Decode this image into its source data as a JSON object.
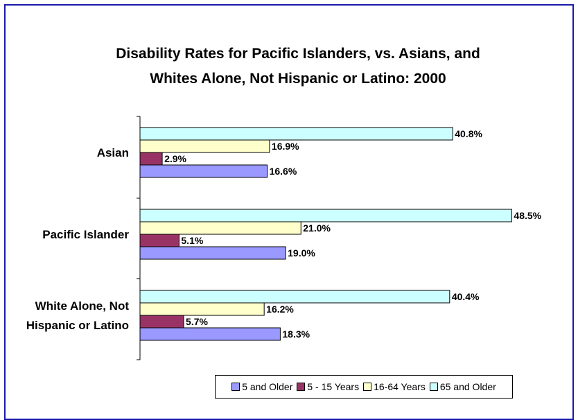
{
  "chart_data": {
    "type": "bar",
    "orientation": "horizontal",
    "title": [
      "Disability Rates for Pacific Islanders, vs. Asians, and",
      "Whites Alone, Not Hispanic or Latino: 2000"
    ],
    "categories": [
      {
        "lines": [
          "Asian"
        ]
      },
      {
        "lines": [
          "Pacific Islander"
        ]
      },
      {
        "lines": [
          "White Alone, Not",
          "Hispanic or Latino"
        ]
      }
    ],
    "series": [
      {
        "name": "5 and Older",
        "color": "#9999ff",
        "values": [
          16.6,
          19.0,
          18.3
        ],
        "labels": [
          "16.6%",
          "19.0%",
          "18.3%"
        ]
      },
      {
        "name": "5 - 15 Years",
        "color": "#993366",
        "values": [
          2.9,
          5.1,
          5.7
        ],
        "labels": [
          "2.9%",
          "5.1%",
          "5.7%"
        ]
      },
      {
        "name": "16-64 Years",
        "color": "#ffffcc",
        "values": [
          16.9,
          21.0,
          16.2
        ],
        "labels": [
          "16.9%",
          "21.0%",
          "16.2%"
        ]
      },
      {
        "name": "65 and Older",
        "color": "#ccffff",
        "values": [
          40.8,
          48.5,
          40.4
        ],
        "labels": [
          "40.8%",
          "48.5%",
          "40.4%"
        ]
      }
    ],
    "xlim": [
      0,
      50
    ],
    "legend_position": "bottom-right",
    "grid": false
  }
}
